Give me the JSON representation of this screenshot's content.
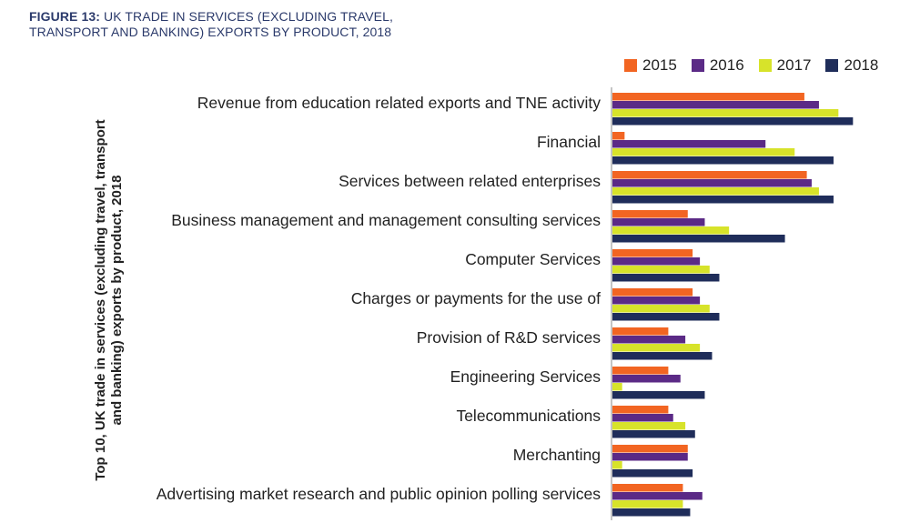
{
  "figure": {
    "label": "FIGURE 13:",
    "title_line1": "UK TRADE IN SERVICES (EXCLUDING TRAVEL,",
    "title_line2": "TRANSPORT AND BANKING) EXPORTS BY PRODUCT, 2018"
  },
  "chart_data": {
    "type": "bar",
    "orientation": "horizontal",
    "title": "UK TRADE IN SERVICES (EXCLUDING TRAVEL, TRANSPORT AND BANKING) EXPORTS BY PRODUCT, 2018",
    "ylabel": "Top 10, UK trade in services (excluding travel, transport and banking) exports by product, 2018",
    "xlabel": "",
    "legend_position": "top-right",
    "grid": false,
    "xlim": [
      0,
      100
    ],
    "categories": [
      "Revenue from education related exports and TNE activity",
      "Financial",
      "Services between related enterprises",
      "Business management and management consulting services",
      "Computer Services",
      "Charges or payments for the use of",
      "Provision of R&D services",
      "Engineering Services",
      "Telecommunications",
      "Merchanting",
      "Advertising market research and public opinion polling services"
    ],
    "series": [
      {
        "name": "2015",
        "color": "#f26522",
        "values": [
          79,
          5,
          80,
          31,
          33,
          33,
          23,
          23,
          23,
          31,
          29
        ]
      },
      {
        "name": "2016",
        "color": "#5b2a86",
        "values": [
          85,
          63,
          82,
          38,
          36,
          36,
          30,
          28,
          25,
          31,
          37
        ]
      },
      {
        "name": "2017",
        "color": "#d7e32a",
        "values": [
          93,
          75,
          85,
          48,
          40,
          40,
          36,
          4,
          30,
          4,
          29
        ]
      },
      {
        "name": "2018",
        "color": "#1f2d5a",
        "values": [
          99,
          91,
          91,
          71,
          44,
          44,
          41,
          38,
          34,
          33,
          32
        ]
      }
    ]
  }
}
